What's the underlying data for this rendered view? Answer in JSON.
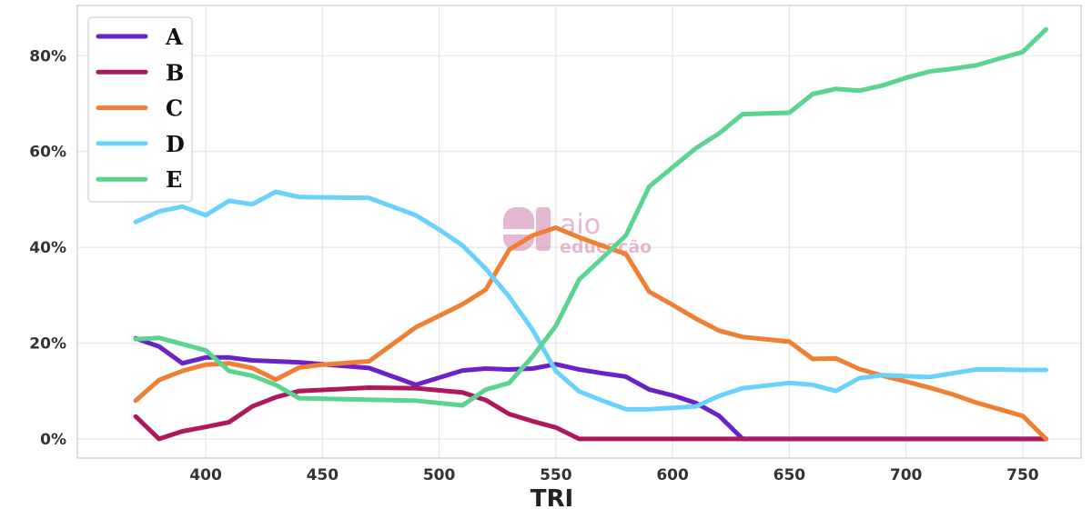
{
  "chart_data": {
    "type": "line",
    "xlabel": "TRI",
    "ylabel": "",
    "xlim": [
      345,
      775
    ],
    "ylim": [
      -0.04,
      0.905
    ],
    "xticks": [
      400,
      450,
      500,
      550,
      600,
      650,
      700,
      750
    ],
    "xtick_labels": [
      "400",
      "450",
      "500",
      "550",
      "600",
      "650",
      "700",
      "750"
    ],
    "yticks": [
      0,
      0.2,
      0.4,
      0.6,
      0.8
    ],
    "ytick_labels": [
      "0%",
      "20%",
      "40%",
      "60%",
      "80%"
    ],
    "grid": true,
    "legend_position": "top-left",
    "watermark": {
      "line1": "aio",
      "line2": "educação",
      "color": "#d07fae"
    },
    "series": [
      {
        "name": "A",
        "color": "#6a22c8",
        "x": [
          370,
          380,
          390,
          400,
          410,
          420,
          440,
          470,
          490,
          510,
          520,
          530,
          540,
          550,
          560,
          570,
          580,
          590,
          600,
          610,
          620,
          630,
          640,
          650,
          660,
          670,
          680,
          690,
          700,
          710,
          720,
          730,
          740,
          750,
          760
        ],
        "y": [
          0.21,
          0.193,
          0.158,
          0.17,
          0.17,
          0.164,
          0.16,
          0.148,
          0.113,
          0.143,
          0.147,
          0.145,
          0.147,
          0.156,
          0.145,
          0.137,
          0.13,
          0.103,
          0.091,
          0.075,
          0.048,
          0,
          0,
          0,
          0,
          0,
          0,
          0,
          0,
          0,
          0,
          0,
          0,
          0,
          0
        ]
      },
      {
        "name": "B",
        "color": "#b0185e",
        "x": [
          370,
          380,
          390,
          400,
          410,
          420,
          430,
          440,
          470,
          490,
          510,
          520,
          530,
          540,
          550,
          560,
          570,
          580,
          600,
          630,
          650,
          700,
          750,
          760
        ],
        "y": [
          0.047,
          0,
          0.016,
          0.025,
          0.035,
          0.068,
          0.087,
          0.1,
          0.107,
          0.106,
          0.097,
          0.081,
          0.052,
          0.037,
          0.024,
          0,
          0,
          0,
          0,
          0,
          0,
          0,
          0,
          0
        ]
      },
      {
        "name": "C",
        "color": "#f07f34",
        "x": [
          370,
          380,
          390,
          400,
          410,
          420,
          430,
          440,
          450,
          470,
          490,
          510,
          520,
          530,
          540,
          550,
          560,
          570,
          580,
          590,
          600,
          610,
          620,
          630,
          650,
          660,
          670,
          680,
          690,
          700,
          710,
          720,
          730,
          740,
          750,
          760
        ],
        "y": [
          0.08,
          0.123,
          0.142,
          0.155,
          0.158,
          0.148,
          0.124,
          0.149,
          0.155,
          0.162,
          0.233,
          0.281,
          0.312,
          0.395,
          0.425,
          0.441,
          0.421,
          0.403,
          0.386,
          0.307,
          0.28,
          0.251,
          0.226,
          0.213,
          0.203,
          0.167,
          0.168,
          0.146,
          0.132,
          0.12,
          0.107,
          0.093,
          0.076,
          0.062,
          0.048,
          0
        ]
      },
      {
        "name": "D",
        "color": "#6ad0fc",
        "x": [
          370,
          380,
          390,
          400,
          410,
          420,
          430,
          440,
          470,
          490,
          500,
          510,
          520,
          530,
          540,
          550,
          560,
          570,
          580,
          590,
          600,
          610,
          620,
          630,
          650,
          660,
          670,
          680,
          690,
          700,
          710,
          720,
          730,
          740,
          750,
          760
        ],
        "y": [
          0.453,
          0.475,
          0.485,
          0.467,
          0.497,
          0.49,
          0.516,
          0.505,
          0.503,
          0.467,
          0.437,
          0.404,
          0.355,
          0.297,
          0.228,
          0.142,
          0.099,
          0.08,
          0.062,
          0.062,
          0.065,
          0.068,
          0.09,
          0.106,
          0.117,
          0.113,
          0.1,
          0.127,
          0.133,
          0.131,
          0.129,
          0.137,
          0.145,
          0.145,
          0.144,
          0.144
        ]
      },
      {
        "name": "E",
        "color": "#5bd391",
        "x": [
          370,
          380,
          390,
          400,
          410,
          420,
          430,
          440,
          470,
          490,
          510,
          520,
          530,
          540,
          550,
          560,
          570,
          580,
          590,
          600,
          610,
          620,
          630,
          650,
          660,
          670,
          680,
          690,
          700,
          710,
          720,
          730,
          740,
          750,
          760
        ],
        "y": [
          0.208,
          0.211,
          0.198,
          0.185,
          0.142,
          0.132,
          0.113,
          0.085,
          0.082,
          0.08,
          0.07,
          0.103,
          0.117,
          0.172,
          0.236,
          0.333,
          0.378,
          0.425,
          0.527,
          0.567,
          0.607,
          0.638,
          0.678,
          0.681,
          0.72,
          0.731,
          0.727,
          0.738,
          0.754,
          0.767,
          0.773,
          0.78,
          0.794,
          0.808,
          0.855
        ]
      }
    ]
  }
}
